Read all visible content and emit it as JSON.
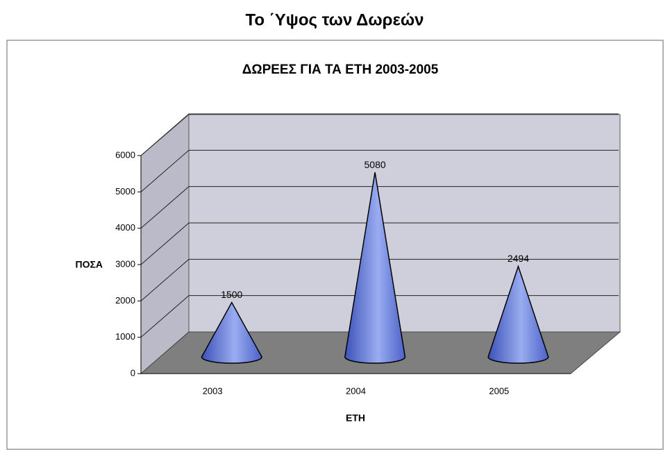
{
  "page_title": "Το ΄Υψος των Δωρεών",
  "chart_data": {
    "type": "cone3d",
    "title": "ΔΩΡΕΕΣ ΓΙΑ ΤΑ ΕΤΗ 2003-2005",
    "y_label": "ΠΟΣΑ",
    "x_label": "ΕΤΗ",
    "categories": [
      "2003",
      "2004",
      "2005"
    ],
    "values": [
      1500,
      5080,
      2494
    ],
    "color": "#5a72d8",
    "ylim": [
      0,
      6000
    ],
    "yticks": [
      0,
      1000,
      2000,
      3000,
      4000,
      5000,
      6000
    ],
    "grid": true
  }
}
